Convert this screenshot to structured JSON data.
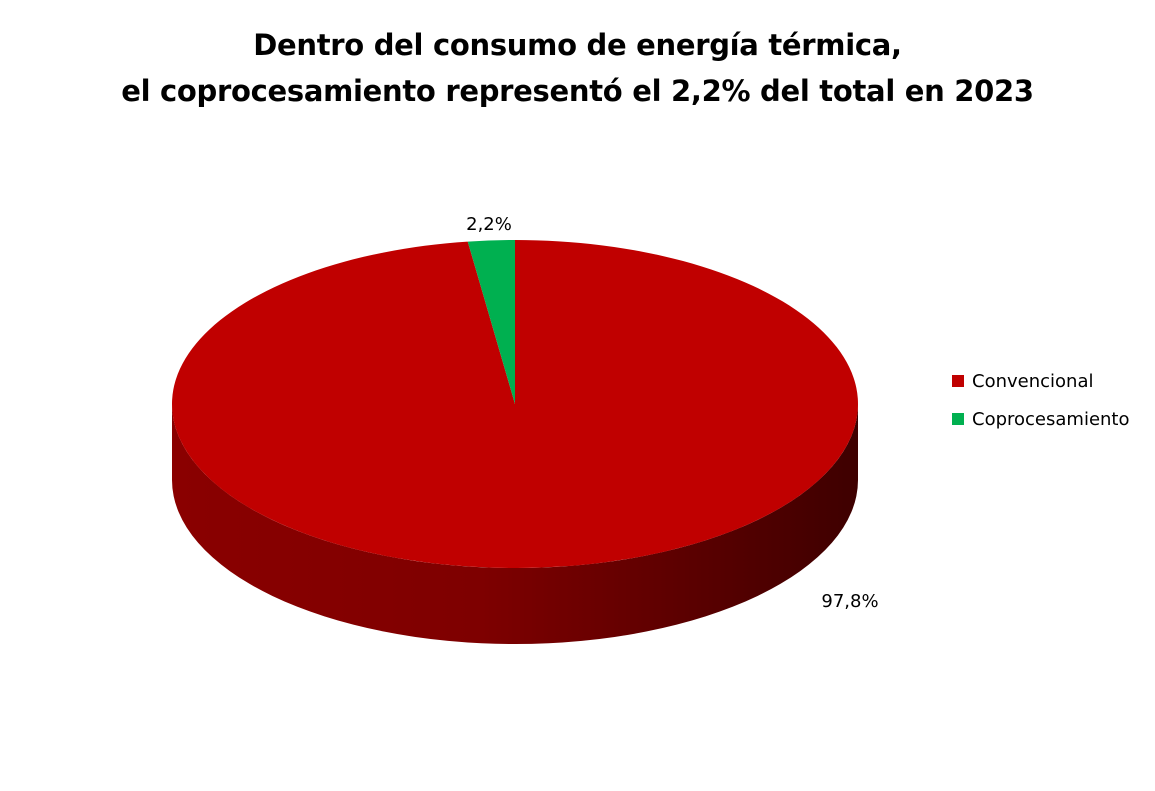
{
  "chart_data": {
    "type": "pie",
    "title": [
      "Dentro del consumo de energía térmica,",
      "el coprocesamiento representó el 2,2% del total en 2023"
    ],
    "categories": [
      "Convencional",
      "Coprocesamiento"
    ],
    "values": [
      97.8,
      2.2
    ],
    "data_labels": [
      "97,8%",
      "2,2%"
    ],
    "colors": [
      "#C00000",
      "#00B050"
    ],
    "legend_position": "right",
    "style": "3d"
  }
}
